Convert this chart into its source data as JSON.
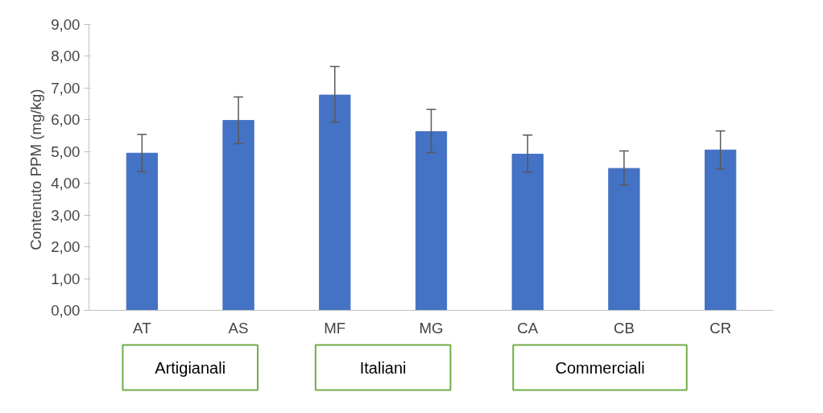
{
  "chart_data": {
    "type": "bar",
    "ylabel": "Contenuto  PPM (mg/kg)",
    "categories": [
      "AT",
      "AS",
      "MF",
      "MG",
      "CA",
      "CB",
      "CR"
    ],
    "values": [
      4.95,
      5.98,
      6.78,
      5.63,
      4.92,
      4.47,
      5.05
    ],
    "errors": [
      [
        4.37,
        5.54
      ],
      [
        5.25,
        6.72
      ],
      [
        5.93,
        7.68
      ],
      [
        4.97,
        6.33
      ],
      [
        4.35,
        5.52
      ],
      [
        3.95,
        5.02
      ],
      [
        4.45,
        5.65
      ]
    ],
    "color": "#4472c4",
    "ylim": [
      0,
      9
    ],
    "yticks": [
      {
        "value": 0,
        "label": "0,00"
      },
      {
        "value": 1,
        "label": "1,00"
      },
      {
        "value": 2,
        "label": "2,00"
      },
      {
        "value": 3,
        "label": "3,00"
      },
      {
        "value": 4,
        "label": "4,00"
      },
      {
        "value": 5,
        "label": "5,00"
      },
      {
        "value": 6,
        "label": "6,00"
      },
      {
        "value": 7,
        "label": "7,00"
      },
      {
        "value": 8,
        "label": "8,00"
      },
      {
        "value": 9,
        "label": "9,00"
      }
    ],
    "grid": false,
    "annotations": [
      "Artigianali",
      "Italiani",
      "Commerciali"
    ]
  }
}
